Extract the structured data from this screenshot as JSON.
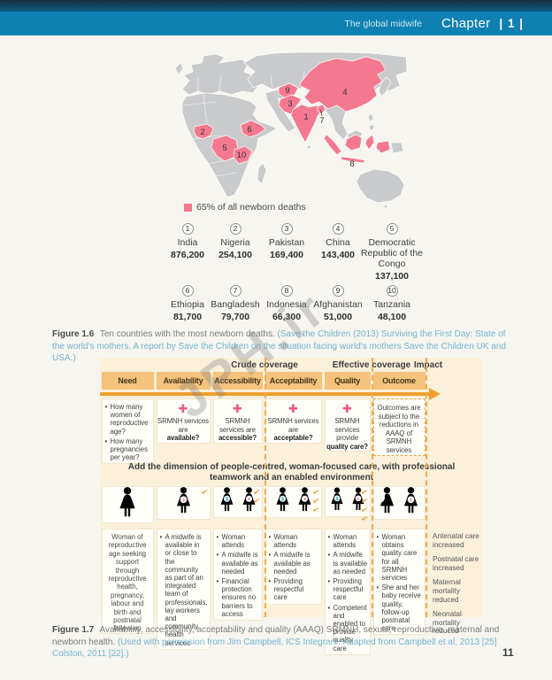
{
  "header": {
    "book_title": "The global midwife",
    "chapter_label": "Chapter",
    "chapter_number": "| 1 |"
  },
  "map": {
    "legend": "65% of all newborn deaths",
    "highlight_color": "#f4798f",
    "land_color": "#c9cacc",
    "markers": [
      {
        "num": "1",
        "country": "India"
      },
      {
        "num": "2",
        "country": "Nigeria"
      },
      {
        "num": "3",
        "country": "Pakistan"
      },
      {
        "num": "4",
        "country": "China"
      },
      {
        "num": "5",
        "country": "Democratic Republic of the Congo"
      },
      {
        "num": "6",
        "country": "Ethiopia"
      },
      {
        "num": "7",
        "country": "Bangladesh"
      },
      {
        "num": "8",
        "country": "Indonesia"
      },
      {
        "num": "9",
        "country": "Afghanistan"
      },
      {
        "num": "10",
        "country": "Tanzania"
      }
    ]
  },
  "countries": [
    {
      "num": "1",
      "name": "India",
      "deaths": "876,200"
    },
    {
      "num": "2",
      "name": "Nigeria",
      "deaths": "254,100"
    },
    {
      "num": "3",
      "name": "Pakistan",
      "deaths": "169,400"
    },
    {
      "num": "4",
      "name": "China",
      "deaths": "143,400"
    },
    {
      "num": "5",
      "name": "Democratic Republic of the Congo",
      "deaths": "137,100"
    },
    {
      "num": "6",
      "name": "Ethiopia",
      "deaths": "81,700"
    },
    {
      "num": "7",
      "name": "Bangladesh",
      "deaths": "79,700"
    },
    {
      "num": "8",
      "name": "Indonesia",
      "deaths": "66,300"
    },
    {
      "num": "9",
      "name": "Afghanistan",
      "deaths": "51,000"
    },
    {
      "num": "10",
      "name": "Tanzania",
      "deaths": "48,100"
    }
  ],
  "figure_1_6": {
    "label": "Figure 1.6",
    "caption": "Ten countries with the most newborn deaths.",
    "citation": "(Save the Children (2013) Surviving the First Day: State of the world's mothers, A report by Save the Children on the situation facing world's mothers Save the Children UK and USA.)"
  },
  "figure_1_7": {
    "label": "Figure 1.7",
    "caption": "Availability, accessibility, acceptability and quality (AAAQ) SRMNH, sexual, reproductive, maternal and newborn health.",
    "citation": "(Used with permission from Jim Campbell, ICS Integrare. Adapted from Campbell et al, 2013 [25] Colston, 2011 [22].)"
  },
  "framework": {
    "group_headers": [
      "Crude coverage",
      "Effective coverage",
      "Impact"
    ],
    "columns": [
      "Need",
      "Availability",
      "Accessibility",
      "Acceptability",
      "Quality",
      "Outcome"
    ],
    "questions": {
      "need": [
        "How many women of reproductive age?",
        "How many pregnancies per year?"
      ],
      "availability": {
        "line": "SRMNH services are",
        "bold": "available?"
      },
      "accessibility": {
        "line": "SRMNH services are",
        "bold": "accessible?"
      },
      "acceptability": {
        "line": "SRMNH services are",
        "bold": "acceptable?"
      },
      "quality": {
        "line": "SRMNH services provide",
        "bold": "quality care?"
      },
      "outcome": "Outcomes are subject to the reductions in AAAQ of SRMNH services"
    },
    "band": "Add the dimension of people-centred, woman-focused care, with professional teamwork and an enabled environment",
    "details": {
      "need": "Woman of reproductive age seeking support through reproductive health, pregnancy, labour and birth and postnatal follow-up",
      "availability": [
        "A midwife is available in or close to the community as part of an integrated team of professionals, lay workers and community health services"
      ],
      "accessibility": [
        "Woman attends",
        "A midwife is available as needed",
        "Financial protection ensures no barriers to access"
      ],
      "acceptability": [
        "Woman attends",
        "A midwife is available as needed",
        "Providing respectful care"
      ],
      "quality": [
        "Woman attends",
        "A midwife is available as needed",
        "Providing respectful care",
        "Competent and enabled to provide quality care"
      ],
      "outcome": [
        "Woman obtains quality care for all SRMNH services",
        "She and her baby receive quality, follow-up postnatal care"
      ]
    },
    "impact_items": [
      "Antenatal care increased",
      "Postnatal care increased",
      "Maternal mortality reduced",
      "Neonatal mortality reduced"
    ],
    "check_counts": {
      "availability": 1,
      "accessibility": 2,
      "acceptability": 3,
      "quality": 4
    }
  },
  "icons": {
    "plus_icon": "✚",
    "check_icon": "✔",
    "midwife_badge": "+",
    "coin_badge": "$",
    "legend_swatch": "pink-square-icon",
    "row_icons": {
      "need": [
        "woman-icon"
      ],
      "availability": [
        "midwife-icon"
      ],
      "accessibility": [
        "woman-coin-icon",
        "midwife-icon"
      ],
      "acceptability": [
        "woman-coin-icon",
        "midwife-icon"
      ],
      "quality": [
        "woman-coin-icon",
        "midwife-icon"
      ],
      "outcome": [
        "woman-with-baby-icon",
        "midwife-icon"
      ]
    }
  },
  "watermark": "JPH.ir",
  "page_number": "11",
  "colors": {
    "header_blue": "#0e81b2",
    "map_pink": "#f4798f",
    "cross_pink": "#f0577c",
    "arrow_orange": "#ef9f2e",
    "band_tan": "#f4c37c",
    "table_cream": "#fbf0da",
    "icon_teal": "#28a7b6",
    "icon_pink": "#ee5f80",
    "check_orange": "#f2a43e",
    "citation_blue": "#75b3ca"
  }
}
